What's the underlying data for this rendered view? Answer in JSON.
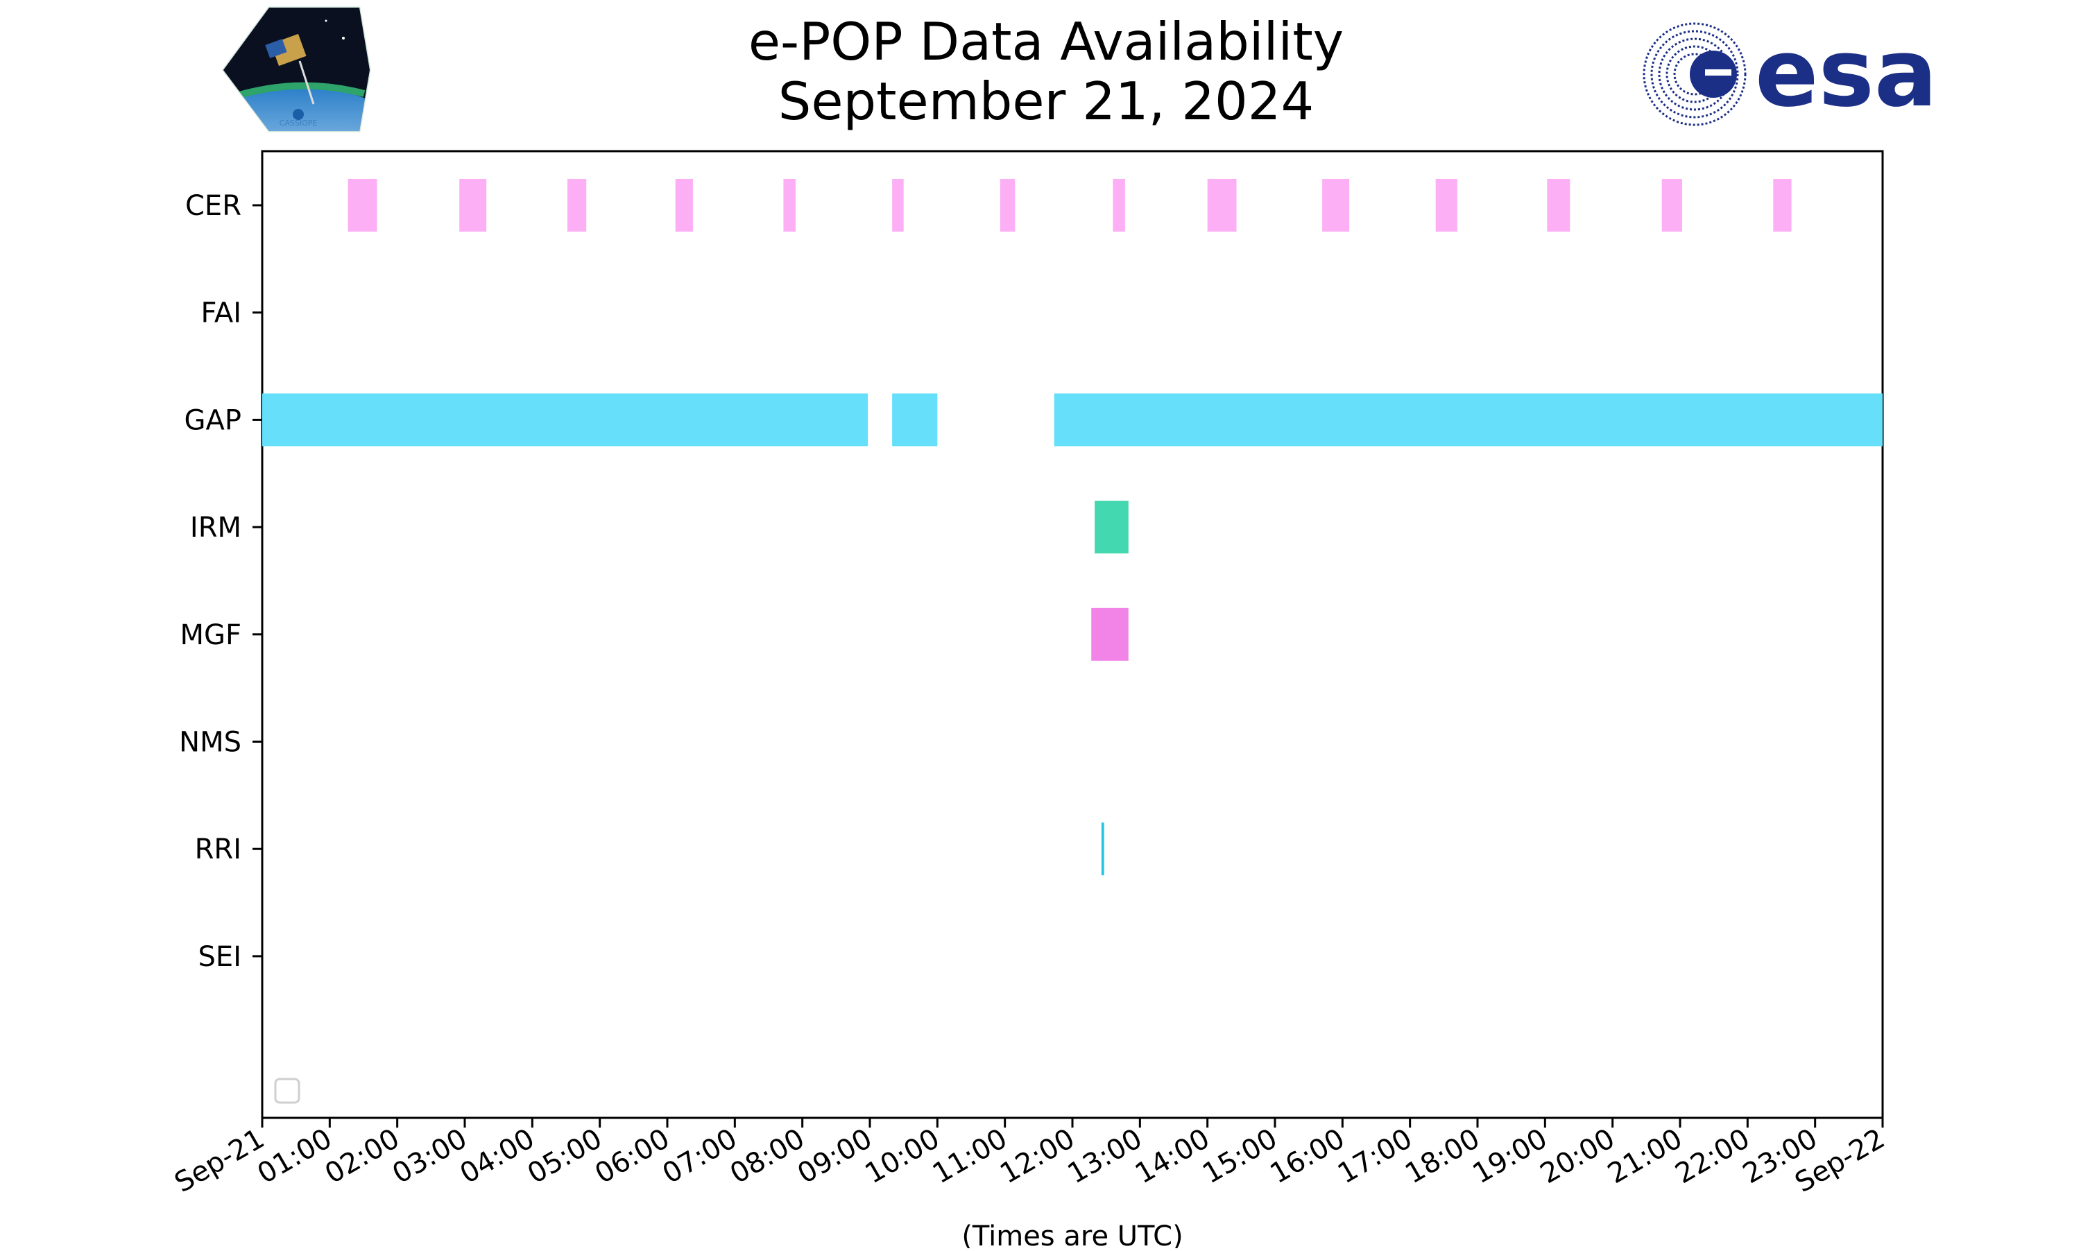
{
  "title_line1": "e-POP Data Availability",
  "title_line2": "September 21, 2024",
  "logos": {
    "left": "CASSIOPE",
    "right": "esa"
  },
  "chart_data": {
    "type": "timeline",
    "title": "e-POP Data Availability September 21, 2024",
    "xlabel": "(Times are UTC)",
    "ylabel": "",
    "x_unit": "hours after 2024-09-21 00:00 UTC",
    "xlim": [
      0,
      24
    ],
    "x_ticks": [
      "Sep-21",
      "01:00",
      "02:00",
      "03:00",
      "04:00",
      "05:00",
      "06:00",
      "07:00",
      "08:00",
      "09:00",
      "10:00",
      "11:00",
      "12:00",
      "13:00",
      "14:00",
      "15:00",
      "16:00",
      "17:00",
      "18:00",
      "19:00",
      "20:00",
      "21:00",
      "22:00",
      "23:00",
      "Sep-22"
    ],
    "categories": [
      "CER",
      "FAI",
      "GAP",
      "IRM",
      "MGF",
      "NMS",
      "RRI",
      "SEI"
    ],
    "grid": false,
    "legend": "bottom-left (empty)",
    "series": [
      {
        "name": "CER",
        "color": "#fcaff5",
        "intervals": [
          [
            1.27,
            1.7
          ],
          [
            2.92,
            3.32
          ],
          [
            4.52,
            4.8
          ],
          [
            6.12,
            6.38
          ],
          [
            7.72,
            7.9
          ],
          [
            9.33,
            9.5
          ],
          [
            10.93,
            11.15
          ],
          [
            12.6,
            12.78
          ],
          [
            14.0,
            14.43
          ],
          [
            15.7,
            16.1
          ],
          [
            17.38,
            17.7
          ],
          [
            19.03,
            19.37
          ],
          [
            20.73,
            21.03
          ],
          [
            22.38,
            22.65
          ]
        ]
      },
      {
        "name": "FAI",
        "color": "#ffffff",
        "intervals": []
      },
      {
        "name": "GAP",
        "color": "#65dffa",
        "intervals": [
          [
            0,
            8.97
          ],
          [
            9.33,
            10.0
          ],
          [
            11.73,
            24
          ]
        ]
      },
      {
        "name": "IRM",
        "color": "#43d8af",
        "intervals": [
          [
            12.33,
            12.83
          ]
        ]
      },
      {
        "name": "MGF",
        "color": "#f283e7",
        "intervals": [
          [
            12.28,
            12.83
          ]
        ]
      },
      {
        "name": "NMS",
        "color": "#ffffff",
        "intervals": []
      },
      {
        "name": "RRI",
        "color": "#26c6e6",
        "intervals": [
          [
            12.43,
            12.47
          ]
        ]
      },
      {
        "name": "SEI",
        "color": "#ffffff",
        "intervals": []
      }
    ]
  }
}
